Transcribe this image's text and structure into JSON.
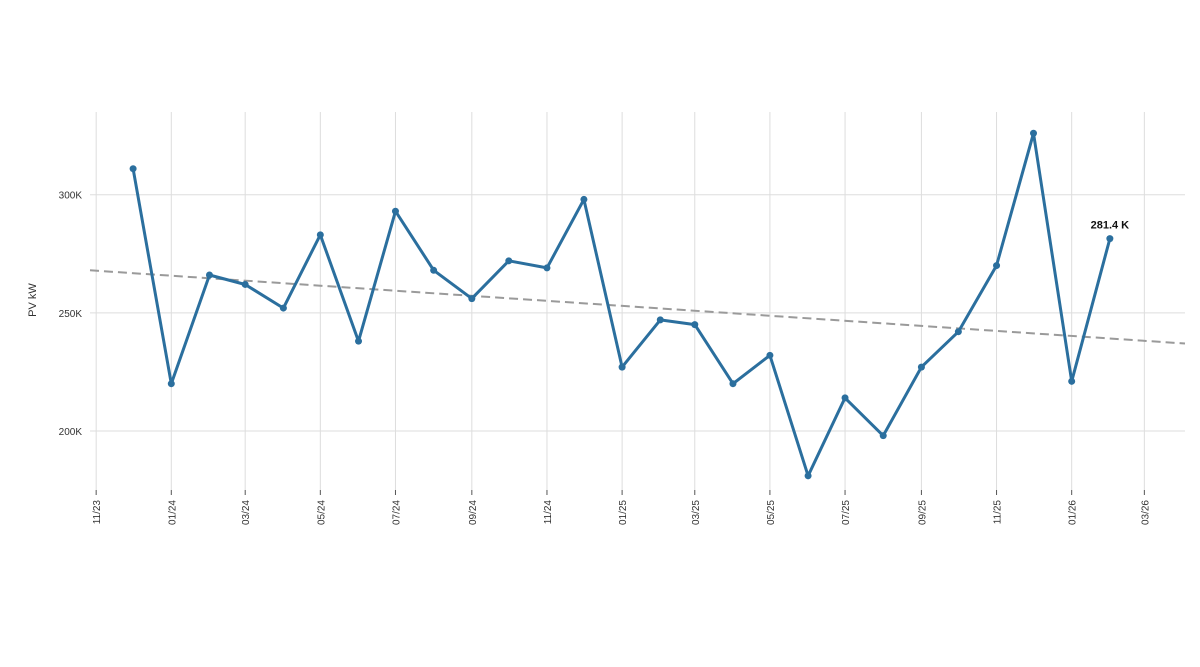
{
  "chart_data": {
    "type": "line",
    "xlabel": "",
    "ylabel": "PV kW",
    "ylim": [
      175000,
      335000
    ],
    "xlim": [
      "2023-10-27",
      "2026-04-03"
    ],
    "grid": true,
    "x_ticks": [
      "2023-11-01",
      "2024-01-01",
      "2024-03-01",
      "2024-05-01",
      "2024-07-01",
      "2024-09-01",
      "2024-11-01",
      "2025-01-01",
      "2025-03-01",
      "2025-05-01",
      "2025-07-01",
      "2025-09-01",
      "2025-11-01",
      "2026-01-01",
      "2026-03-01"
    ],
    "x_tick_labels": [
      "11/23",
      "01/24",
      "03/24",
      "05/24",
      "07/24",
      "09/24",
      "11/24",
      "01/25",
      "03/25",
      "05/25",
      "07/25",
      "09/25",
      "11/25",
      "01/26",
      "03/26"
    ],
    "y_ticks": [
      200000,
      250000,
      300000
    ],
    "y_tick_labels": [
      "200K",
      "250K",
      "300K"
    ],
    "series": [
      {
        "name": "",
        "color": "#2b6f9e",
        "x": [
          "2023-12-01",
          "2024-01-01",
          "2024-02-01",
          "2024-03-01",
          "2024-04-01",
          "2024-05-01",
          "2024-06-01",
          "2024-07-01",
          "2024-08-01",
          "2024-09-01",
          "2024-10-01",
          "2024-11-01",
          "2024-12-01",
          "2025-01-01",
          "2025-02-01",
          "2025-03-01",
          "2025-04-01",
          "2025-05-01",
          "2025-06-01",
          "2025-07-01",
          "2025-08-01",
          "2025-09-01",
          "2025-10-01",
          "2025-11-01",
          "2025-12-01",
          "2026-01-01",
          "2026-02-01"
        ],
        "values": [
          311000,
          220000,
          266000,
          262000,
          252000,
          283000,
          238000,
          293000,
          268000,
          256000,
          272000,
          269000,
          298000,
          227000,
          247000,
          245000,
          220000,
          232000,
          181000,
          214000,
          198000,
          227000,
          242000,
          270000,
          326000,
          221000,
          281400
        ]
      }
    ],
    "trendline": {
      "style": "dashed",
      "color": "#9a9a9a",
      "x": [
        "2023-10-27",
        "2026-04-03"
      ],
      "values": [
        268000,
        237000
      ]
    },
    "annotations": [
      {
        "text": "281.4 K",
        "x": "2026-02-01",
        "y": 281400
      }
    ]
  }
}
